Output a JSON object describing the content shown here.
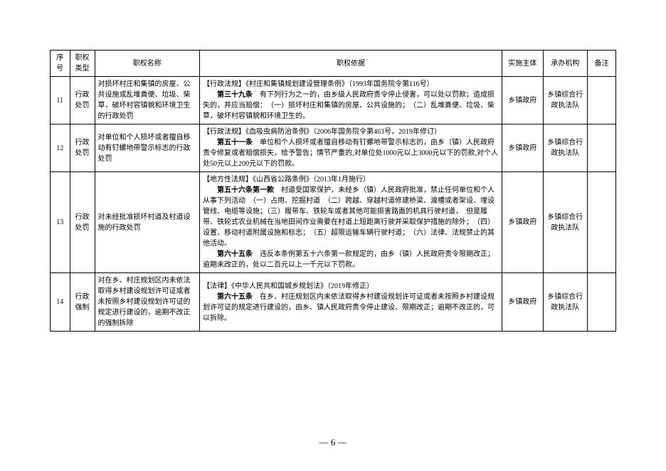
{
  "headers": {
    "seq": "序号",
    "type": "职权类型",
    "name": "职权名称",
    "basis": "职权依据",
    "subject": "实施主体",
    "agency": "承办机构",
    "remark": "备注"
  },
  "rows": [
    {
      "seq": "11",
      "type": "行政处罚",
      "name": "对损坏村庄和集镇的房屋、公共设施或乱堆粪便、垃圾、柴草，破坏村容镇貌和环境卫生的行政处罚",
      "basis_label": "【行政法规】《村庄和集镇规划建设管理条例》（1993年国务院令第116号）",
      "basis_clause_label": "第三十九条",
      "basis_clause_text": "　有下列行为之一的，由乡级人民政府责令停止侵害，可以处以罚款；造成损失的，并应当赔偿：　（一）损坏村庄和集镇的房屋、公共设施的；　（二）乱堆粪便、垃圾、柴草，破坏村容镇貌和环境卫生的。",
      "subject": "乡镇政府",
      "agency": "乡镇综合行政执法队",
      "remark": ""
    },
    {
      "seq": "12",
      "type": "行政处罚",
      "name": "对单位和个人损坏或者擅自移动有钉螺地带警示标志的行政处罚",
      "basis_label": "【行政法规】《血吸虫病防治条例》（2006年国务院令第463号，2019年修订）",
      "basis_clause_label": "第五十一条",
      "basis_clause_text": "　单位和个人损坏或者擅自移动有钉螺地带警示标志的，由乡（镇）人民政府责令修复或者赔偿损失，给予警告；情节严重的,对单位处1000元以上3000元以下的罚款,对个人处50元以上200元以下的罚款。",
      "subject": "乡镇政府",
      "agency": "乡镇综合行政执法队",
      "remark": ""
    },
    {
      "seq": "13",
      "type": "行政处罚",
      "name": "对未经批准损坏村道及村道设施的行政处罚",
      "basis_label": "【地方性法规】《山西省公路条例》（2013年1月施行）",
      "basis_clause_label": "第五十六条第一款",
      "basis_clause_text": "　村道受国家保护，未经乡（镇）人民政府批准，禁止任何单位和个人从事下列活动　（一）占用、挖掘村道　（二）跨越、穿越村道修建桥梁、渡槽或者架设、埋设管线、电缆等设施；（三）履带车、铁轮车或者其他可能损害路面的机具行驶村道，　但是履带、铁轮式农业机械在当地田间作业需要在村道上短距离行驶并采取保护措施的除外；　（四）设置、移动村道附属设施和标志；　（五）超限运输车辆行驶村道；　（六）法律、法规禁止的其他活动。",
      "basis_clause2_label": "第六十五条",
      "basis_clause2_text": "　违反本条例第五十六条第一款规定的，由乡（镇）人民政府责令限期改正；逾期未改正的，处以二百元以上一千元以下罚款。",
      "subject": "乡镇政府",
      "agency": "乡镇综合行政执法队",
      "remark": ""
    },
    {
      "seq": "14",
      "type": "行政强制",
      "name": "对在乡、村庄规划区内未依法取得乡村建设规划许可证或者未按照乡村建设规划许可证的规定进行建设的，逾期不改正的强制拆除",
      "basis_label": "【法律】《中华人民共和国城乡规划法》（2019年修正）",
      "basis_clause_label": "第六十五条",
      "basis_clause_text": "　在乡、村庄规划区内未依法取得乡村建设规划许可证或者未按照乡村建设规划许可证的规定进行建设的，由乡、镇人民政府责令停止建设、限期改正；逾期不改正的，可以拆除。",
      "subject": "乡镇政府",
      "agency": "乡镇综合行政执法队",
      "remark": ""
    }
  ],
  "page_number": "— 6 —"
}
